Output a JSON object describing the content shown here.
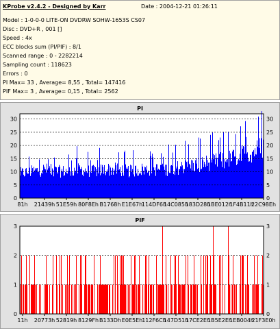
{
  "info": {
    "title": "KProbe v2.4.2 - Designed by Karr",
    "date": "Date : 2004-12-21 01:26:11",
    "lines": [
      "Model : 1-0-0-0 LITE-ON DVDRW SOHW-1653S CS07",
      "Disc : DVD+R , 001 []",
      "Speed : 4x",
      "ECC blocks sum (PI/PIF) : 8/1",
      "Scanned range : 0 - 2282214",
      "Sampling count : 118623",
      "Errors : 0",
      "PI Max= 33 , Average= 8,55 , Total= 147416",
      "PIF Max= 3 , Average= 0,15 , Total= 2562"
    ]
  },
  "colors": {
    "pi": "#0000ff",
    "pif": "#ff0000",
    "grid": "#000000",
    "plot_bg": "#ffffff"
  },
  "chart_data": [
    {
      "type": "bar",
      "title": "PI",
      "xlabel": "",
      "ylabel": "",
      "ylim": [
        0,
        32
      ],
      "yticks": [
        0,
        5,
        10,
        15,
        20,
        25,
        30
      ],
      "grid": true,
      "x_tick_labels": [
        "81h",
        "21439h",
        "51E59h",
        "80F8Eh",
        "B1768h",
        "E1E67h",
        "114DF6h",
        "14C085h",
        "183D28h",
        "1BE012h",
        "1F4B11h",
        "22C98Eh"
      ],
      "envelope": [
        [
          0,
          13
        ],
        [
          0.05,
          14
        ],
        [
          0.1,
          15
        ],
        [
          0.15,
          14
        ],
        [
          0.2,
          14
        ],
        [
          0.25,
          15
        ],
        [
          0.3,
          14
        ],
        [
          0.35,
          15
        ],
        [
          0.4,
          15
        ],
        [
          0.45,
          14
        ],
        [
          0.5,
          15
        ],
        [
          0.55,
          15
        ],
        [
          0.6,
          15
        ],
        [
          0.65,
          16
        ],
        [
          0.7,
          17
        ],
        [
          0.75,
          18
        ],
        [
          0.8,
          19
        ],
        [
          0.85,
          20
        ],
        [
          0.9,
          22
        ],
        [
          0.95,
          24
        ],
        [
          1.0,
          27
        ]
      ],
      "max_value": 33
    },
    {
      "type": "bar",
      "title": "PIF",
      "xlabel": "",
      "ylabel": "",
      "ylim": [
        0,
        3
      ],
      "yticks": [
        0,
        1,
        2,
        3
      ],
      "grid": true,
      "x_tick_labels": [
        "11h",
        "20773h",
        "52819h",
        "8129Fh",
        "B133Dh",
        "E0E5Eh",
        "112F6Ch",
        "147D51h",
        "17CE2Eh",
        "1B5E2Eh",
        "1EB004h",
        "21F3E0h"
      ],
      "spikes_at_3": [
        0.585,
        0.795,
        0.855
      ],
      "max_value": 3
    }
  ]
}
